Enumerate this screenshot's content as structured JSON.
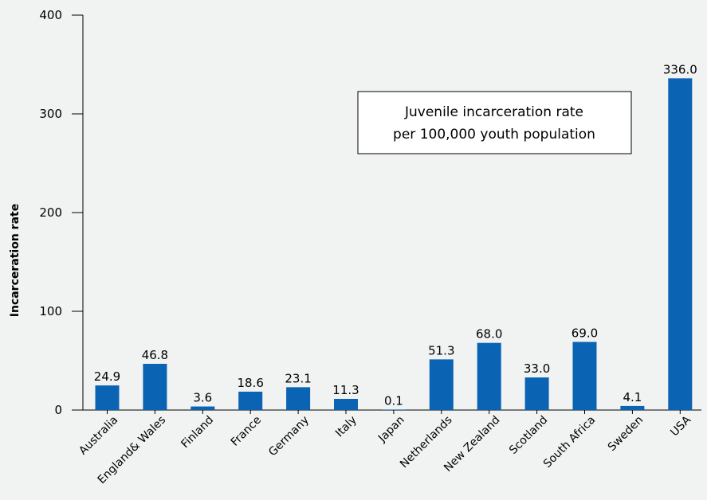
{
  "chart_data": {
    "type": "bar",
    "categories": [
      "Australia",
      "England& Wales",
      "Finland",
      "France",
      "Germany",
      "Italy",
      "Japan",
      "Netherlands",
      "New Zealand",
      "Scotland",
      "South Africa",
      "Sweden",
      "USA"
    ],
    "values": [
      24.9,
      46.8,
      3.6,
      18.6,
      23.1,
      11.3,
      0.1,
      51.3,
      68.0,
      33.0,
      69.0,
      4.1,
      336.0
    ],
    "value_labels": [
      "24.9",
      "46.8",
      "3.6",
      "18.6",
      "23.1",
      "11.3",
      "0.1",
      "51.3",
      "68.0",
      "33.0",
      "69.0",
      "4.1",
      "336.0"
    ],
    "yticks": [
      0,
      100,
      200,
      300,
      400
    ],
    "ylim": [
      0,
      400
    ],
    "xlabel": "",
    "ylabel": "Incarceration rate",
    "legend_box": {
      "line1": "Juvenile incarceration rate",
      "line2": "per 100,000 youth population"
    },
    "grid": false,
    "bar_color": "#0a63b3",
    "background_color": "#f1f2f2"
  }
}
